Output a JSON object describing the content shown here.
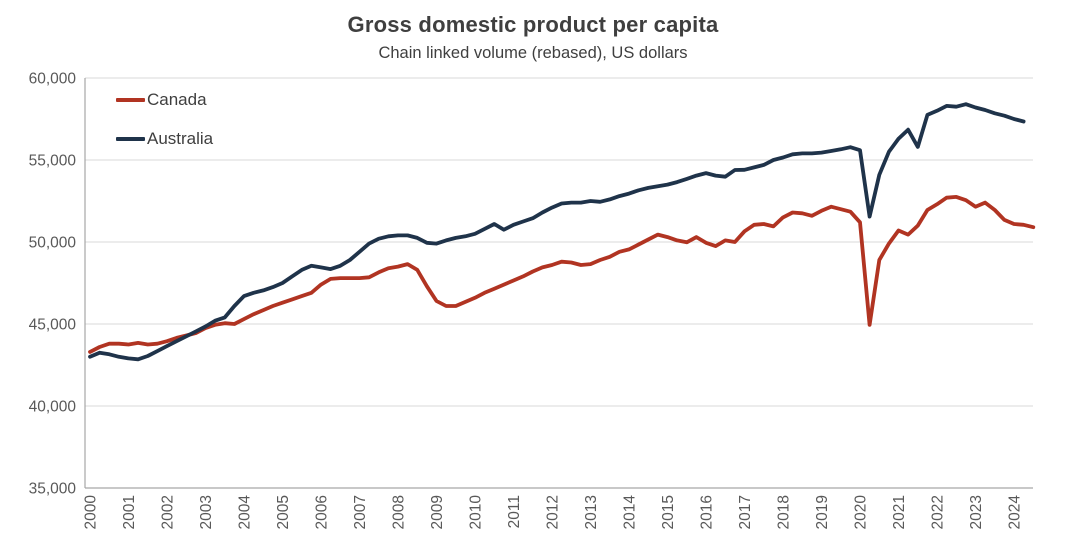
{
  "title": "Gross domestic product per capita",
  "subtitle": "Chain linked volume (rebased), US dollars",
  "colors": {
    "canada": "#B13422",
    "australia": "#1F334A",
    "title_text": "#3F3F3F",
    "axis_text": "#595959",
    "gridline": "#D9D9D9",
    "axis_line": "#A6A6A6",
    "background": "#FFFFFF"
  },
  "legend": [
    {
      "label": "Canada",
      "color": "#B13422"
    },
    {
      "label": "Australia",
      "color": "#1F334A"
    }
  ],
  "y_axis": {
    "tick_labels": [
      "60,000",
      "55,000",
      "50,000",
      "45,000",
      "40,000",
      "35,000"
    ],
    "min": 35000,
    "max": 60000,
    "step": 5000
  },
  "x_axis": {
    "tick_labels": [
      "2000",
      "2001",
      "2002",
      "2003",
      "2004",
      "2005",
      "2006",
      "2007",
      "2008",
      "2009",
      "2010",
      "2011",
      "2012",
      "2013",
      "2014",
      "2015",
      "2016",
      "2017",
      "2018",
      "2019",
      "2020",
      "2021",
      "2022",
      "2023",
      "2024"
    ],
    "label_rotation_deg": -90
  },
  "chart_data": {
    "type": "line",
    "title": "Gross domestic product per capita",
    "subtitle": "Chain linked volume (rebased), US dollars",
    "x_unit": "quarterly",
    "x_start": "2000-Q1",
    "ylim": [
      35000,
      60000
    ],
    "grid": true,
    "legend_position": "inside-top-left",
    "series": [
      {
        "name": "Canada",
        "color": "#B13422",
        "end": "2024-Q3",
        "values": [
          43300,
          43600,
          43800,
          43800,
          43750,
          43850,
          43750,
          43800,
          43950,
          44150,
          44300,
          44450,
          44750,
          44950,
          45050,
          45000,
          45300,
          45600,
          45850,
          46100,
          46300,
          46500,
          46700,
          46900,
          47400,
          47750,
          47800,
          47800,
          47800,
          47850,
          48150,
          48400,
          48500,
          48650,
          48300,
          47300,
          46400,
          46100,
          46100,
          46350,
          46600,
          46900,
          47150,
          47400,
          47650,
          47900,
          48200,
          48450,
          48600,
          48800,
          48750,
          48600,
          48650,
          48900,
          49100,
          49400,
          49550,
          49850,
          50150,
          50450,
          50300,
          50100,
          49980,
          50300,
          49950,
          49750,
          50100,
          50000,
          50650,
          51050,
          51100,
          50950,
          51500,
          51800,
          51750,
          51600,
          51900,
          52150,
          52000,
          51850,
          51200,
          44950,
          48900,
          49900,
          50700,
          50450,
          51000,
          51950,
          52300,
          52700,
          52750,
          52550,
          52150,
          52400,
          51950,
          51350,
          51100,
          51050,
          50900
        ]
      },
      {
        "name": "Australia",
        "color": "#1F334A",
        "end": "2024-Q2",
        "values": [
          43000,
          43250,
          43150,
          43000,
          42900,
          42850,
          43050,
          43350,
          43650,
          43950,
          44250,
          44550,
          44850,
          45200,
          45400,
          46100,
          46700,
          46900,
          47050,
          47250,
          47500,
          47900,
          48300,
          48550,
          48450,
          48350,
          48550,
          48900,
          49400,
          49900,
          50200,
          50350,
          50400,
          50400,
          50250,
          49950,
          49900,
          50100,
          50250,
          50350,
          50500,
          50800,
          51100,
          50750,
          51050,
          51250,
          51450,
          51800,
          52100,
          52350,
          52400,
          52400,
          52500,
          52450,
          52600,
          52800,
          52950,
          53150,
          53300,
          53400,
          53500,
          53650,
          53850,
          54050,
          54200,
          54050,
          53980,
          54390,
          54400,
          54550,
          54700,
          55000,
          55150,
          55350,
          55400,
          55400,
          55450,
          55550,
          55650,
          55780,
          55600,
          51550,
          54100,
          55500,
          56300,
          56850,
          55800,
          57750,
          58000,
          58300,
          58250,
          58400,
          58200,
          58050,
          57850,
          57700,
          57500,
          57350
        ]
      }
    ]
  }
}
